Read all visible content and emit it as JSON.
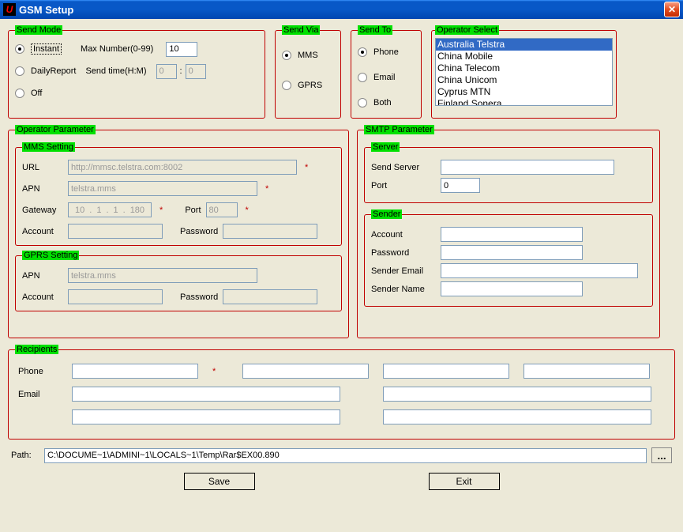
{
  "window": {
    "title": "GSM Setup"
  },
  "sendMode": {
    "legend": "Send Mode",
    "instant": "Instant",
    "dailyReport": "DailyReport",
    "off": "Off",
    "maxNumberLabel": "Max Number(0-99)",
    "maxNumberValue": "10",
    "sendTimeLabel": "Send time(H:M)",
    "sendTimeH": "0",
    "sendTimeM": "0",
    "selected": "instant"
  },
  "sendVia": {
    "legend": "Send Via",
    "mms": "MMS",
    "gprs": "GPRS",
    "selected": "mms"
  },
  "sendTo": {
    "legend": "Send To",
    "phone": "Phone",
    "email": "Email",
    "both": "Both",
    "selected": "phone"
  },
  "operatorSelect": {
    "legend": "Operator Select",
    "items": [
      "Australia Telstra",
      "China Mobile",
      "China Telecom",
      "China Unicom",
      "Cyprus MTN",
      "Finland Sonera"
    ],
    "selectedIndex": 0
  },
  "operatorParameter": {
    "legend": "Operator Parameter",
    "mms": {
      "legend": "MMS Setting",
      "urlLabel": "URL",
      "urlValue": "http://mmsc.telstra.com:8002",
      "apnLabel": "APN",
      "apnValue": "telstra.mms",
      "gatewayLabel": "Gateway",
      "gateway": [
        "10",
        "1",
        "1",
        "180"
      ],
      "portLabel": "Port",
      "portValue": "80",
      "accountLabel": "Account",
      "accountValue": "",
      "passwordLabel": "Password",
      "passwordValue": ""
    },
    "gprs": {
      "legend": "GPRS Setting",
      "apnLabel": "APN",
      "apnValue": "telstra.mms",
      "accountLabel": "Account",
      "accountValue": "",
      "passwordLabel": "Password",
      "passwordValue": ""
    }
  },
  "smtp": {
    "legend": "SMTP Parameter",
    "server": {
      "legend": "Server",
      "sendServerLabel": "Send Server",
      "sendServerValue": "",
      "portLabel": "Port",
      "portValue": "0"
    },
    "sender": {
      "legend": "Sender",
      "accountLabel": "Account",
      "accountValue": "",
      "passwordLabel": "Password",
      "passwordValue": "",
      "emailLabel": "Sender Email",
      "emailValue": "",
      "nameLabel": "Sender Name",
      "nameValue": ""
    }
  },
  "recipients": {
    "legend": "Recipients",
    "phoneLabel": "Phone",
    "emailLabel": "Email",
    "phones": [
      "",
      "",
      "",
      ""
    ],
    "emails": [
      "",
      "",
      "",
      ""
    ]
  },
  "path": {
    "label": "Path:",
    "value": "C:\\DOCUME~1\\ADMINI~1\\LOCALS~1\\Temp\\Rar$EX00.890",
    "browse": "..."
  },
  "buttons": {
    "save": "Save",
    "exit": "Exit"
  },
  "colors": {
    "border_red": "#c00000",
    "legend_green": "#00e000",
    "titlebar_blue": "#0858c7",
    "body_bg": "#ece9d8",
    "input_border": "#7f9db9",
    "list_selected": "#316ac5"
  }
}
